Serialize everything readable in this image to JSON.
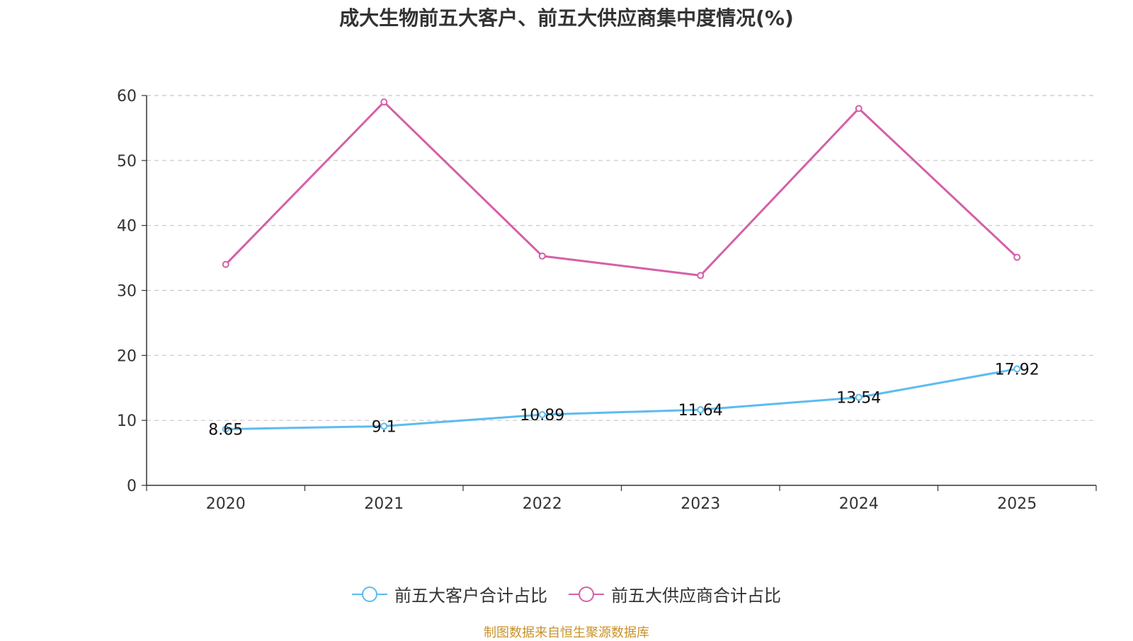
{
  "title": "成大生物前五大客户、前五大供应商集中度情况(%)",
  "source": "制图数据来自恒生聚源数据库",
  "chart_data": {
    "type": "line",
    "categories": [
      "2020",
      "2021",
      "2022",
      "2023",
      "2024",
      "2025"
    ],
    "ylim": [
      0,
      60
    ],
    "yticks": [
      0,
      10,
      20,
      30,
      40,
      50,
      60
    ],
    "grid": true,
    "legend_position": "bottom",
    "series": [
      {
        "name": "前五大客户合计占比",
        "color": "#5bbcf0",
        "values": [
          8.65,
          9.1,
          10.89,
          11.64,
          13.54,
          17.92
        ],
        "labels": [
          "8.65",
          "9.1",
          "10.89",
          "11.64",
          "13.54",
          "17.92"
        ],
        "show_labels": true
      },
      {
        "name": "前五大供应商合计占比",
        "color": "#d460a8",
        "values": [
          34.0,
          59.0,
          35.3,
          32.3,
          58.0,
          35.1
        ],
        "show_labels": false
      }
    ]
  }
}
